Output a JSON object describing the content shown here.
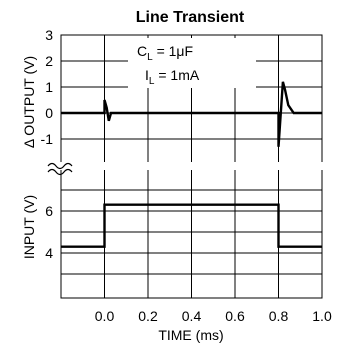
{
  "chart_data": {
    "type": "line",
    "title": "Line Transient",
    "xlabel": "TIME (ms)",
    "x_ticks": [
      "0.0",
      "0.2",
      "0.4",
      "0.6",
      "0.8",
      "1.0"
    ],
    "xlim": [
      -0.2,
      1.0
    ],
    "panels": [
      {
        "name": "output",
        "ylabel": "Δ OUTPUT (V)",
        "ylim": [
          -1.5,
          3
        ],
        "y_ticks": [
          "3",
          "2",
          "1",
          "0",
          "-1"
        ],
        "series": [
          {
            "x": [
              -0.2,
              0.0,
              0.0,
              0.01,
              0.02,
              0.03,
              0.8,
              0.8,
              0.82,
              0.83,
              0.845,
              0.87,
              1.0
            ],
            "y": [
              0,
              0,
              0.5,
              0.2,
              -0.3,
              0,
              0,
              -1.3,
              1.2,
              0.9,
              0.3,
              0,
              0
            ]
          }
        ]
      },
      {
        "name": "input",
        "ylabel": "INPUT (V)",
        "ylim": [
          2,
          7
        ],
        "y_ticks": [
          "6",
          "4"
        ],
        "series": [
          {
            "x": [
              -0.2,
              0.0,
              0.0,
              0.8,
              0.8,
              1.0
            ],
            "y": [
              4.3,
              4.3,
              6.3,
              6.3,
              4.3,
              4.3
            ]
          }
        ]
      }
    ],
    "annotations": [
      {
        "main": "C",
        "sub": "L",
        "rest": " = 1μF"
      },
      {
        "main": "I",
        "sub": "L",
        "rest": " = 1mA"
      }
    ],
    "grid": true
  }
}
